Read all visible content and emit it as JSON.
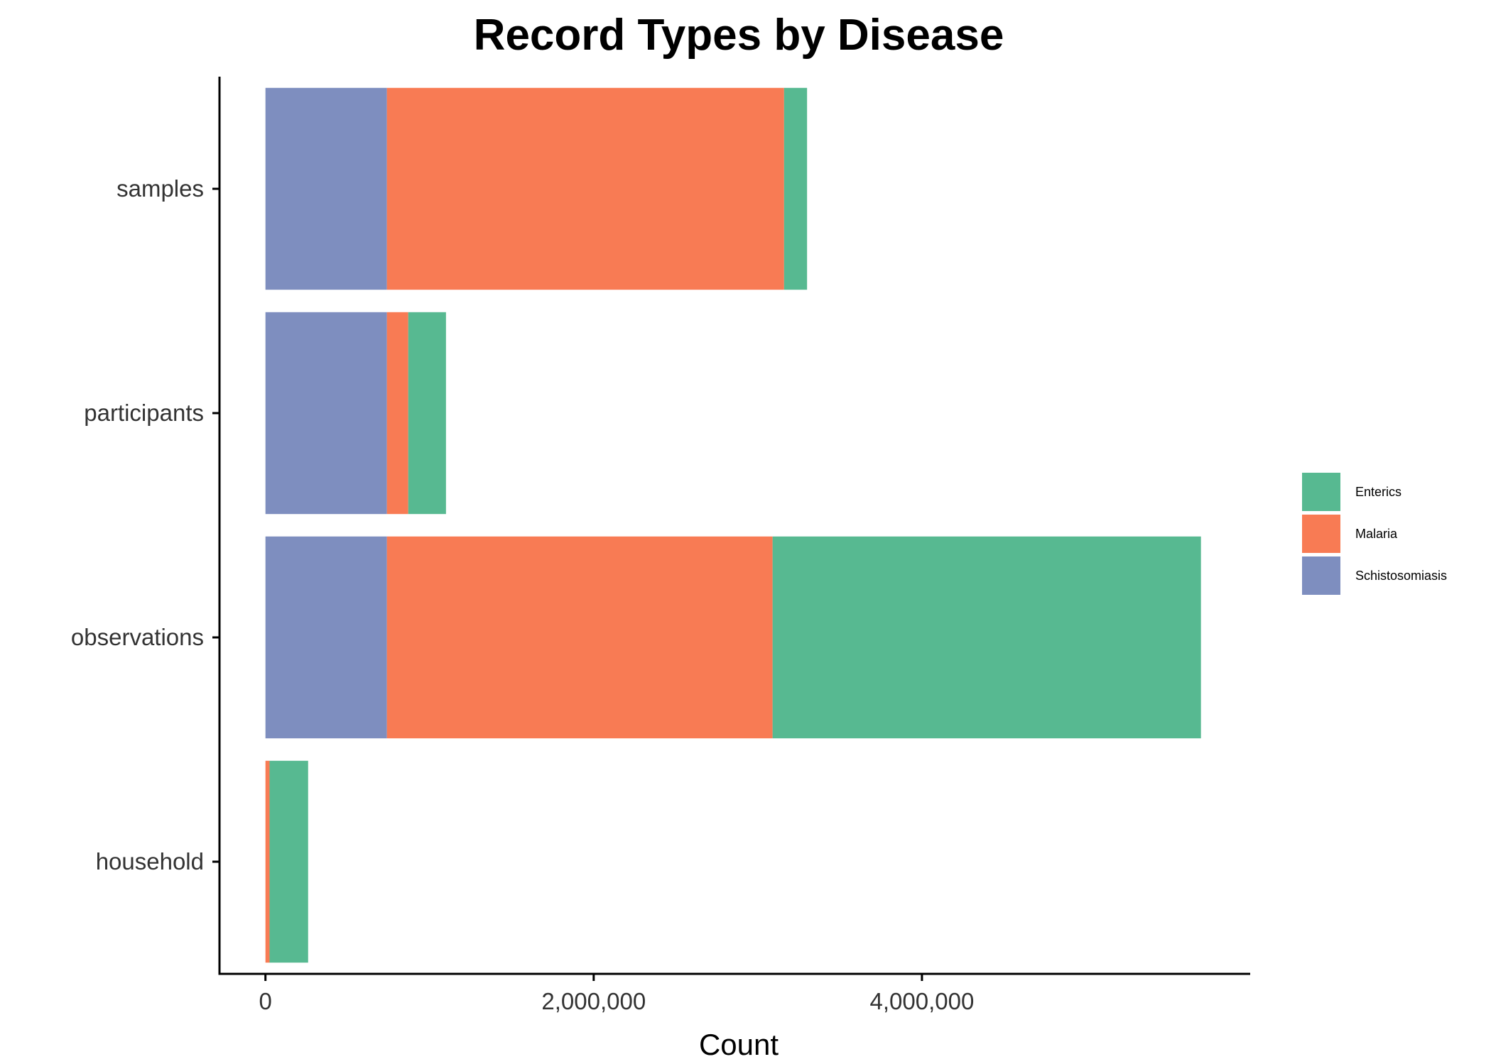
{
  "chart_data": {
    "type": "bar",
    "orientation": "horizontal",
    "stacked": true,
    "title": "Record Types by Disease",
    "xlabel": "Count",
    "ylabel": "",
    "categories": [
      "household",
      "observations",
      "participants",
      "samples"
    ],
    "xlim": [
      -280000,
      6000000
    ],
    "xticks": [
      0,
      2000000,
      4000000
    ],
    "xtick_labels": [
      "0",
      "2,000,000",
      "4,000,000"
    ],
    "grid": false,
    "legend_position": "right",
    "series": [
      {
        "name": "Schistosomiasis",
        "color": "#7E8EBF",
        "values": [
          0,
          740000,
          740000,
          740000
        ]
      },
      {
        "name": "Malaria",
        "color": "#F87B54",
        "values": [
          25000,
          2350000,
          130000,
          2420000
        ]
      },
      {
        "name": "Enterics",
        "color": "#57B991",
        "values": [
          235000,
          2610000,
          230000,
          140000
        ]
      }
    ],
    "legend_order": [
      "Enterics",
      "Malaria",
      "Schistosomiasis"
    ]
  }
}
